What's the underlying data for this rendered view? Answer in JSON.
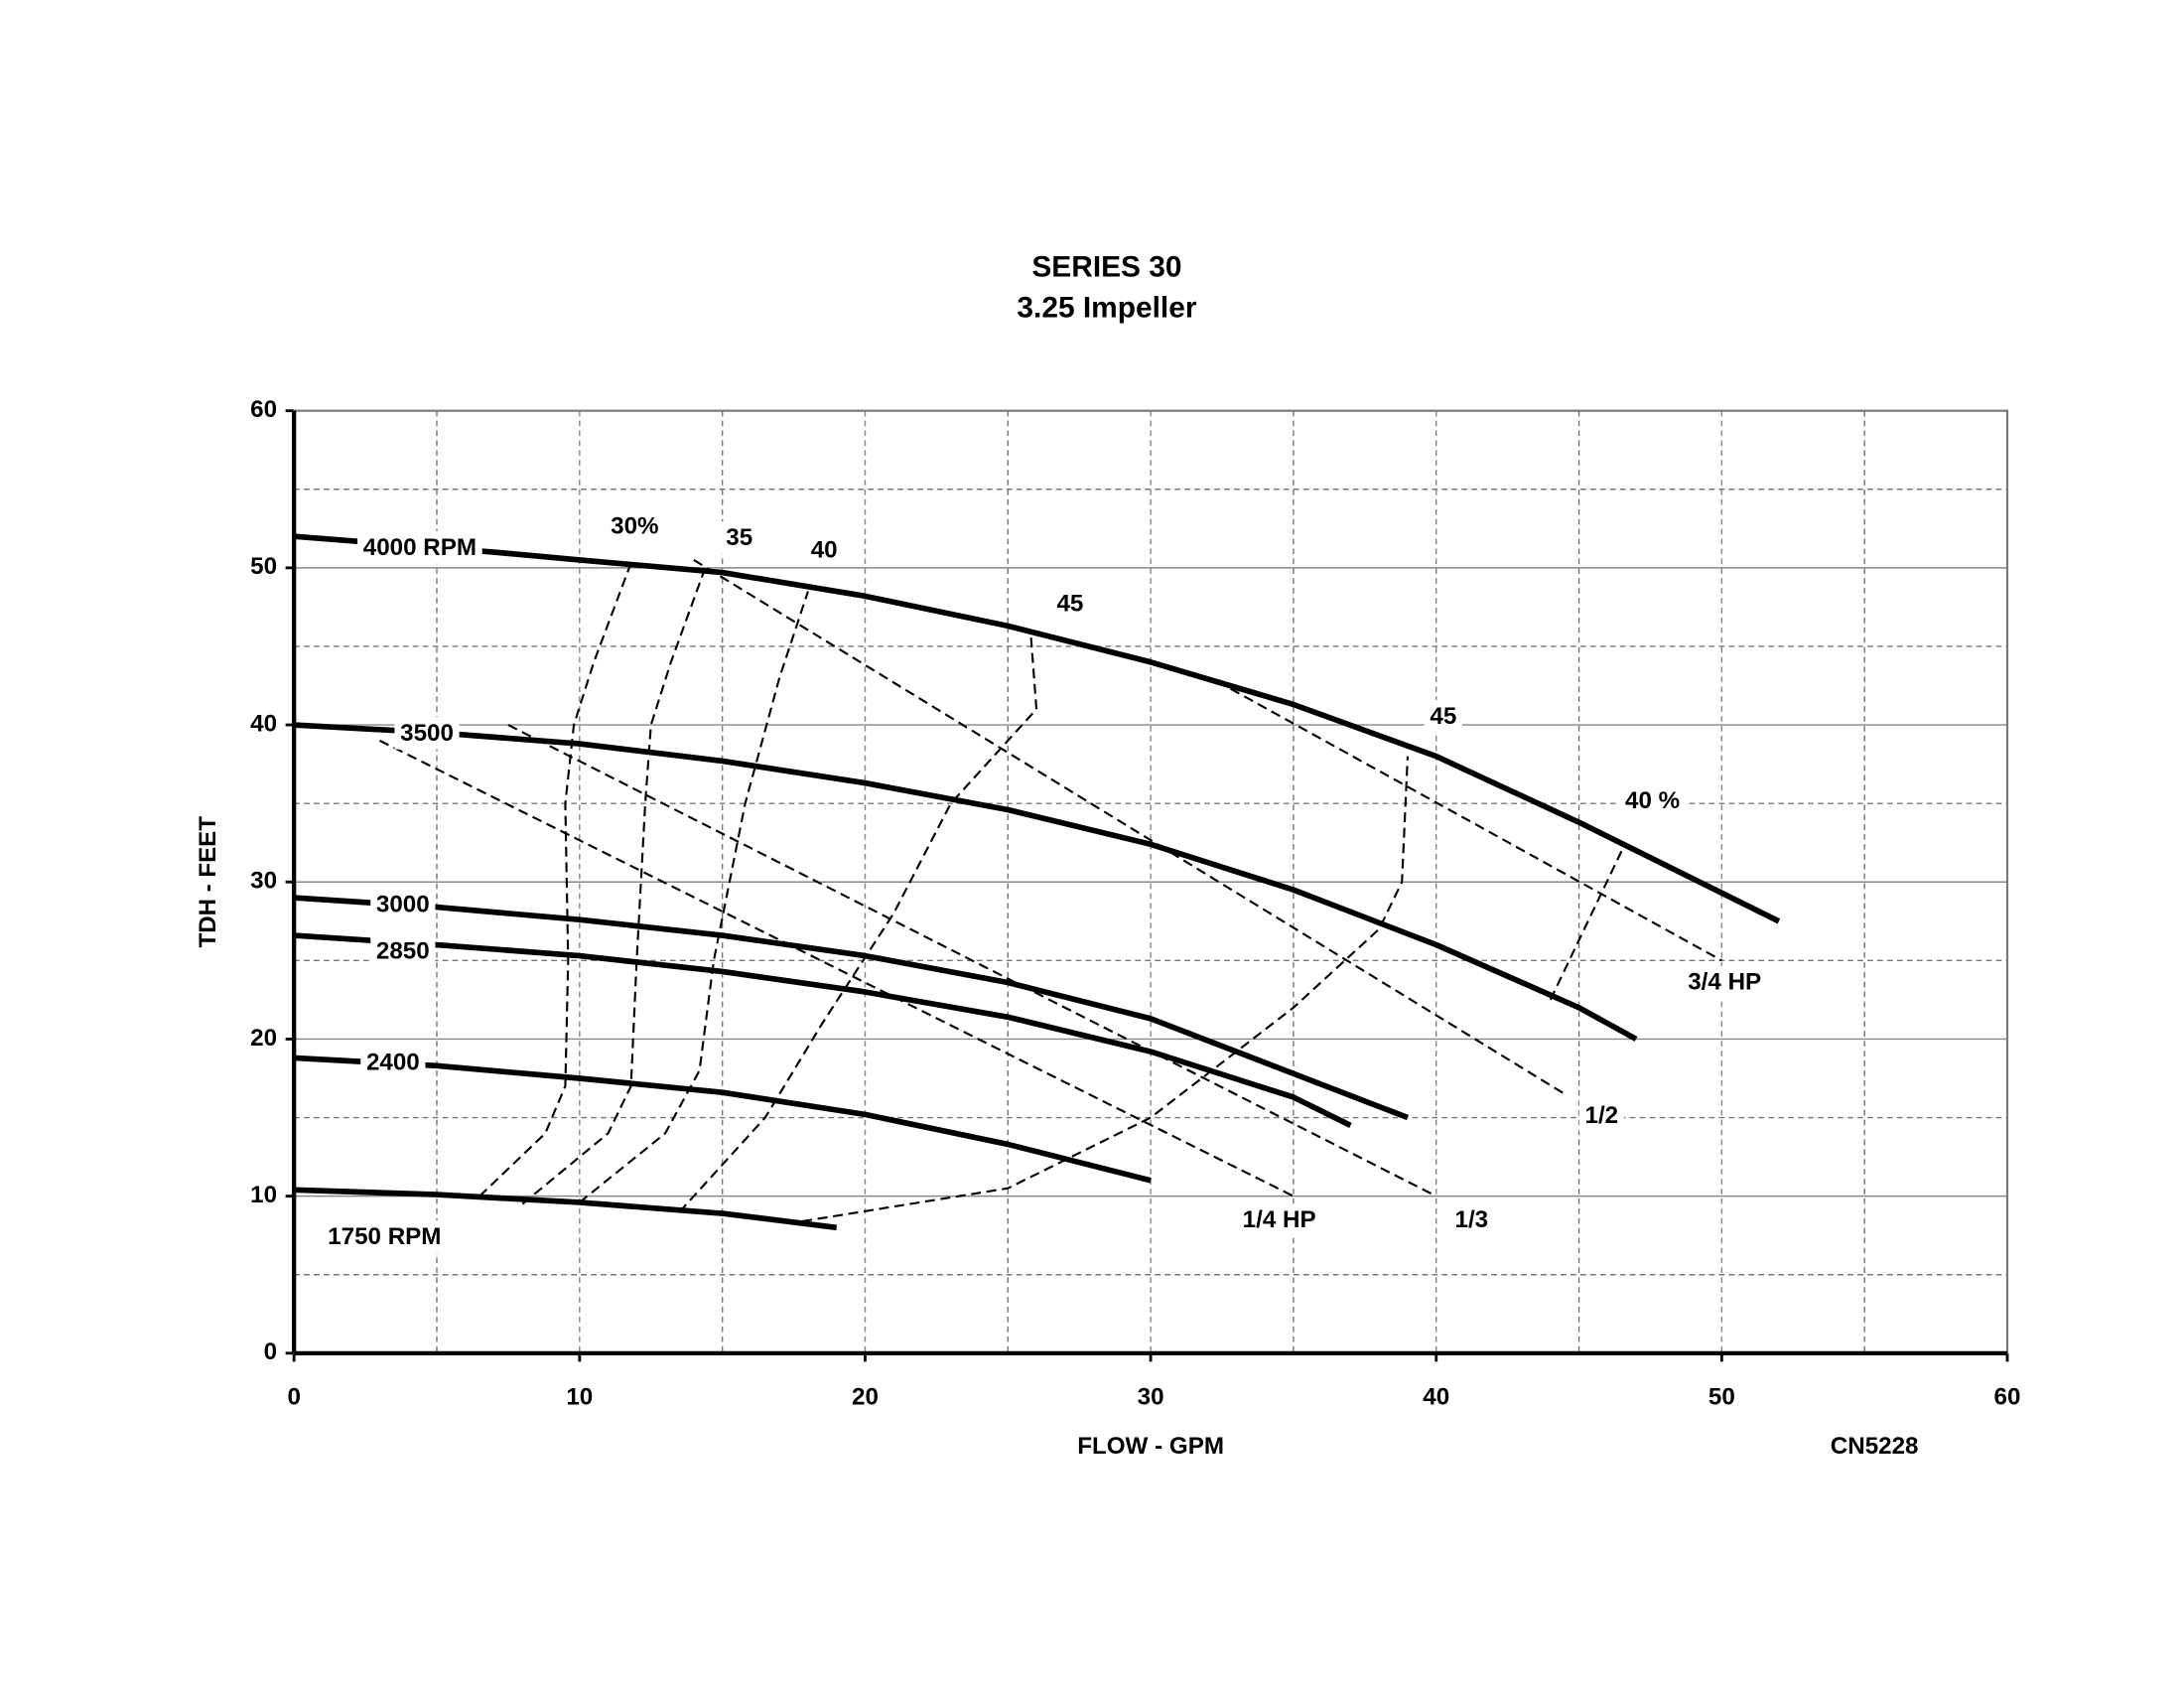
{
  "chart_data": {
    "type": "line",
    "title": "SERIES 30",
    "subtitle": "3.25 Impeller",
    "x_label": "FLOW - GPM",
    "y_label": "TDH - FEET",
    "annotation": "CN5228",
    "xlim": [
      0,
      60
    ],
    "ylim": [
      0,
      60
    ],
    "xticks": [
      0,
      10,
      20,
      30,
      40,
      50,
      60
    ],
    "yticks": [
      0,
      10,
      20,
      30,
      40,
      50,
      60
    ],
    "xminorticks": [
      5,
      15,
      25,
      35,
      45,
      55
    ],
    "yminorticks": [
      5,
      15,
      25,
      35,
      45,
      55
    ],
    "grid": true,
    "color": "#000000",
    "series": [
      {
        "name": "4000 RPM",
        "style": "solid",
        "x": [
          0,
          7,
          10,
          15,
          20,
          25,
          30,
          35,
          40,
          45,
          50,
          52
        ],
        "values": [
          52,
          51,
          50.5,
          49.7,
          48.2,
          46.3,
          44,
          41.3,
          38,
          33.8,
          29.3,
          27.5
        ]
      },
      {
        "name": "3500",
        "style": "solid",
        "x": [
          0,
          5,
          10,
          15,
          20,
          25,
          30,
          35,
          40,
          45,
          47
        ],
        "values": [
          40,
          39.5,
          38.8,
          37.7,
          36.3,
          34.6,
          32.4,
          29.5,
          26,
          22,
          20
        ]
      },
      {
        "name": "3000",
        "style": "solid",
        "x": [
          0,
          5,
          10,
          15,
          20,
          25,
          30,
          35,
          39
        ],
        "values": [
          29,
          28.4,
          27.6,
          26.6,
          25.3,
          23.6,
          21.3,
          17.8,
          15
        ]
      },
      {
        "name": "2850",
        "style": "solid",
        "x": [
          0,
          5,
          10,
          15,
          20,
          25,
          30,
          35,
          37
        ],
        "values": [
          26.6,
          26,
          25.3,
          24.3,
          23,
          21.4,
          19.2,
          16.3,
          14.5
        ]
      },
      {
        "name": "2400",
        "style": "solid",
        "x": [
          0,
          5,
          10,
          15,
          20,
          25,
          30
        ],
        "values": [
          18.8,
          18.3,
          17.5,
          16.6,
          15.2,
          13.3,
          11
        ]
      },
      {
        "name": "1750 RPM",
        "style": "solid",
        "x": [
          0,
          5,
          10,
          15,
          19
        ],
        "values": [
          10.4,
          10.1,
          9.6,
          8.9,
          8
        ]
      },
      {
        "name": "30%",
        "style": "dashed",
        "x": [
          6.5,
          8.8,
          9.5,
          9.6,
          9.5,
          9.8,
          10.5,
          11.8
        ],
        "values": [
          10,
          14,
          17,
          25,
          35,
          40,
          44,
          50.3
        ]
      },
      {
        "name": "35",
        "style": "dashed",
        "x": [
          8,
          11,
          11.8,
          12,
          12.3,
          12.5,
          13.2,
          14.4
        ],
        "values": [
          9.5,
          14,
          17,
          25,
          35,
          40,
          44,
          50
        ]
      },
      {
        "name": "40",
        "style": "dashed",
        "x": [
          10,
          13,
          14.2,
          14.7,
          15.8,
          17,
          18
        ],
        "values": [
          9.6,
          14,
          18,
          25,
          35,
          43,
          48.5
        ]
      },
      {
        "name": "45",
        "style": "dashed",
        "x": [
          13.5,
          16.5,
          18.5,
          21,
          23,
          26,
          25.8
        ],
        "values": [
          9,
          15,
          21,
          28,
          35,
          41,
          45.8
        ]
      },
      {
        "name": "45",
        "style": "dashed",
        "x": [
          17.8,
          25,
          30,
          35,
          38,
          38.8,
          39
        ],
        "values": [
          8.4,
          10.5,
          15,
          22,
          27,
          30,
          38
        ]
      },
      {
        "name": "40 %",
        "style": "dashed",
        "x": [
          44,
          46.5
        ],
        "values": [
          22.5,
          32
        ]
      },
      {
        "name": "1/4 HP",
        "style": "dashed",
        "x": [
          3,
          35
        ],
        "values": [
          39,
          10
        ]
      },
      {
        "name": "1/3",
        "style": "dashed",
        "x": [
          7.5,
          40
        ],
        "values": [
          40,
          10
        ]
      },
      {
        "name": "1/2",
        "style": "dashed",
        "x": [
          14,
          44.5
        ],
        "values": [
          50.5,
          16.5
        ]
      },
      {
        "name": "3/4 HP",
        "style": "dashed",
        "x": [
          32.8,
          50
        ],
        "values": [
          42.3,
          25
        ]
      }
    ]
  }
}
